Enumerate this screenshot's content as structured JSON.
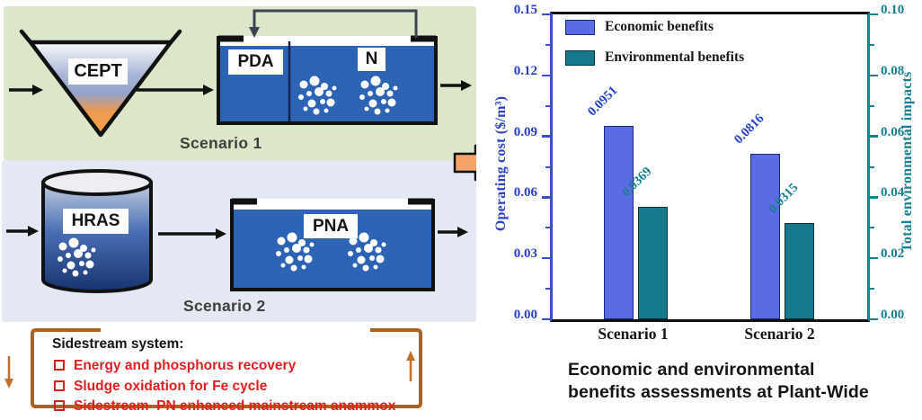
{
  "diagram": {
    "panels": {
      "scenario1_bg": "#dce7ca",
      "scenario2_bg": "#e3e8f3"
    },
    "scenario1": {
      "label": "Scenario 1",
      "clarifier": "CEPT",
      "compartments": [
        "PDA",
        "N"
      ]
    },
    "scenario2": {
      "label": "Scenario 2",
      "reactor": "HRAS",
      "tank": "PNA"
    },
    "sidestream": {
      "title": "Sidestream system:",
      "items": [
        "Energy and phosphorus recovery",
        "Sludge oxidation for Fe cycle",
        "Sidestream  PN enhanced mainstream anammox"
      ],
      "border_color": "#b2611c",
      "text_color": "#e02020"
    },
    "flow_arrow_color": "#f4a46a",
    "tank_color": "#2c63b5"
  },
  "chart_data": {
    "type": "bar",
    "categories": [
      "Scenario 1",
      "Scenario 2"
    ],
    "series": [
      {
        "name": "Economic benefits",
        "axis": "left",
        "values": [
          0.0951,
          0.0816
        ],
        "labels": [
          "0.0951",
          "0.0816"
        ],
        "color": "#5b6be3",
        "label_color": "#2742c6"
      },
      {
        "name": "Environmental benefits",
        "axis": "right",
        "values": [
          0.0369,
          0.0315
        ],
        "labels": [
          "0.0369",
          "0.0315"
        ],
        "color": "#15798b",
        "label_color": "#17808f"
      }
    ],
    "left_axis": {
      "label": "Operating cost ($/m³)",
      "ticks": [
        "0.00",
        "0.03",
        "0.06",
        "0.09",
        "0.12",
        "0.15"
      ],
      "range": [
        0,
        0.15
      ],
      "color": "#2b3fc4"
    },
    "right_axis": {
      "label": "Total environmental impacts",
      "ticks": [
        "0.00",
        "0.02",
        "0.04",
        "0.06",
        "0.08",
        "0.10"
      ],
      "range": [
        0,
        0.1
      ],
      "color": "#17818f"
    },
    "legend_position": "top-left",
    "grid": false,
    "caption": "Economic and environmental\nbenefits assessments at Plant-Wide"
  }
}
